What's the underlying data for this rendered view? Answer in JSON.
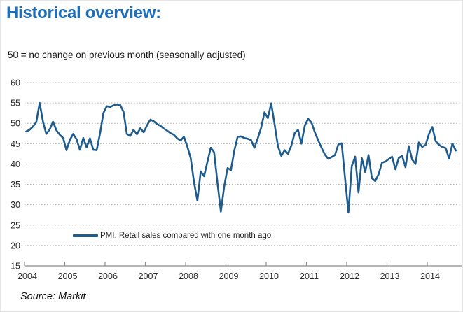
{
  "header": {
    "title": "Historical overview:"
  },
  "chart": {
    "subtitle": "50 = no change on previous month (seasonally adjusted)",
    "legend": {
      "label": "PMI, Retail sales compared with one month ago"
    }
  },
  "footer": {
    "source": "Source: Markit"
  },
  "colors": {
    "title": "#1E6FB8",
    "line": "#1F5C8E",
    "grid": "#ABABAB",
    "axis": "#8C8C8C",
    "text": "#2B2B2B"
  },
  "chart_data": {
    "type": "line",
    "title": "Historical overview:",
    "subtitle": "50 = no change on previous month (seasonally adjusted)",
    "note": "50 = no change on previous month",
    "x_ticks": [
      2004,
      2005,
      2006,
      2007,
      2008,
      2009,
      2010,
      2011,
      2012,
      2013,
      2014
    ],
    "y_ticks": [
      60,
      55,
      50,
      45,
      40,
      35,
      30,
      25,
      20,
      15
    ],
    "ylim": [
      15,
      60
    ],
    "grid": "horizontal-dotted",
    "legend_position": "inside-bottom-left",
    "x_start_year": 2004,
    "points_per_year": 12,
    "series": [
      {
        "name": "PMI, Retail sales compared with one month ago",
        "values": [
          48.0,
          48.4,
          49.2,
          50.3,
          55.0,
          50.4,
          47.4,
          48.5,
          50.4,
          48.3,
          47.2,
          46.4,
          43.4,
          45.9,
          47.4,
          46.1,
          43.5,
          46.4,
          44.1,
          46.3,
          43.5,
          43.4,
          47.5,
          52.5,
          54.2,
          54.0,
          54.4,
          54.6,
          54.5,
          52.8,
          47.4,
          46.9,
          48.4,
          47.3,
          48.8,
          47.8,
          49.5,
          50.9,
          50.5,
          49.8,
          49.4,
          48.7,
          48.2,
          47.6,
          47.2,
          46.3,
          45.8,
          46.7,
          44.3,
          41.5,
          35.5,
          31.0,
          38.2,
          37.0,
          40.5,
          44.0,
          42.9,
          35.3,
          28.3,
          34.5,
          39.0,
          38.5,
          43.3,
          46.7,
          46.8,
          46.4,
          46.2,
          45.9,
          44.0,
          46.3,
          48.9,
          52.7,
          51.3,
          54.9,
          49.8,
          44.4,
          42.0,
          43.4,
          42.5,
          44.5,
          47.6,
          48.4,
          45.0,
          49.4,
          51.1,
          50.2,
          47.8,
          45.8,
          44.0,
          42.3,
          41.3,
          41.7,
          42.2,
          44.8,
          45.1,
          36.5,
          28.1,
          39.5,
          41.8,
          33.0,
          41.4,
          38.0,
          42.2,
          36.5,
          35.8,
          37.5,
          40.3,
          40.6,
          41.2,
          41.8,
          38.7,
          41.5,
          42.0,
          39.2,
          44.4,
          41.1,
          40.0,
          45.3,
          44.2,
          44.7,
          47.4,
          49.1,
          45.6,
          44.7,
          44.2,
          43.9,
          41.3,
          45.0,
          43.3
        ]
      }
    ]
  }
}
